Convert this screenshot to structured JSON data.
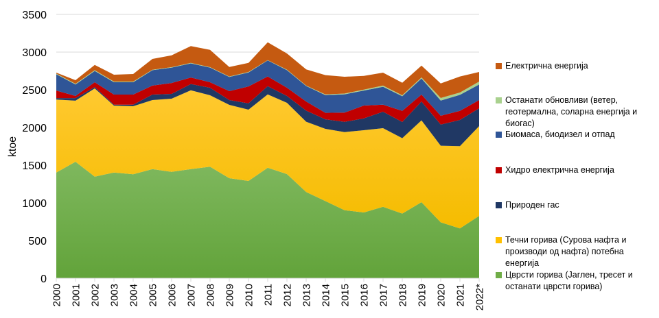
{
  "chart_data": {
    "type": "area",
    "stacked": true,
    "title": "",
    "xlabel": "",
    "ylabel": "ktoe",
    "ylim": [
      0,
      3500
    ],
    "yticks": [
      0,
      500,
      1000,
      1500,
      2000,
      2500,
      3000,
      3500
    ],
    "grid": true,
    "legend_position": "right",
    "categories": [
      "2000",
      "2001",
      "2002",
      "2003",
      "2004",
      "2005",
      "2006",
      "2007",
      "2008",
      "2009",
      "2010",
      "2011",
      "2012",
      "2013",
      "2014",
      "2015",
      "2016",
      "2017",
      "2018",
      "2019",
      "2020",
      "2021",
      "2022*"
    ],
    "series": [
      {
        "name": "Цврсти горива (Јаглен, тресет и останати цврсти горива)",
        "color": "#70AD47",
        "values": [
          1403,
          1545,
          1348,
          1403,
          1379,
          1448,
          1412,
          1448,
          1479,
          1327,
          1291,
          1465,
          1382,
          1145,
          1024,
          903,
          873,
          948,
          858,
          1009,
          742,
          661,
          827
        ]
      },
      {
        "name": "Течни горива (Сурова нафта и производи од нафта) потебна енергија",
        "color": "#FFC000",
        "values": [
          967,
          810,
          1170,
          887,
          903,
          916,
          970,
          1046,
          948,
          973,
          945,
          974,
          945,
          931,
          958,
          1036,
          1091,
          1043,
          1000,
          1086,
          1016,
          1091,
          1191
        ]
      },
      {
        "name": "Природен гас",
        "color": "#203864",
        "values": [
          20,
          35,
          18,
          13,
          21,
          72,
          63,
          82,
          100,
          64,
          85,
          109,
          91,
          148,
          126,
          136,
          157,
          218,
          215,
          250,
          281,
          348,
          237
        ]
      },
      {
        "name": "Хидро електрична енергија",
        "color": "#C00000",
        "values": [
          100,
          28,
          64,
          133,
          133,
          119,
          145,
          87,
          73,
          118,
          224,
          128,
          109,
          121,
          87,
          122,
          170,
          94,
          148,
          91,
          116,
          121,
          109
        ]
      },
      {
        "name": "Биомаса, биодизел и отпад",
        "color": "#2F5597",
        "values": [
          215,
          152,
          150,
          164,
          164,
          205,
          205,
          187,
          195,
          188,
          185,
          214,
          233,
          205,
          235,
          243,
          199,
          237,
          194,
          214,
          202,
          212,
          206
        ]
      },
      {
        "name": "Останати обновливи (ветер, геотермална, соларна енергија и биогас)",
        "color": "#A9D18E",
        "values": [
          10,
          10,
          10,
          9,
          9,
          6,
          5,
          7,
          5,
          6,
          6,
          4,
          7,
          5,
          9,
          10,
          13,
          15,
          12,
          14,
          34,
          31,
          39
        ]
      },
      {
        "name": "Електрична енергија",
        "color": "#C55A11",
        "values": [
          12,
          47,
          70,
          91,
          100,
          143,
          157,
          222,
          230,
          127,
          121,
          236,
          215,
          215,
          256,
          223,
          182,
          172,
          167,
          157,
          194,
          212,
          127
        ]
      }
    ]
  },
  "legend": {
    "items": [
      {
        "label": "Електрична енергија",
        "color": "#C55A11"
      },
      {
        "label": "Останати обновливи (ветер, геотермална, соларна енергија и биогас)",
        "color": "#A9D18E"
      },
      {
        "label": "Биомаса, биодизел и отпад",
        "color": "#2F5597"
      },
      {
        "label": "Хидро електрична енергија",
        "color": "#C00000"
      },
      {
        "label": "Природен гас",
        "color": "#203864"
      },
      {
        "label": "Течни горива (Сурова нафта и производи од нафта) потебна енергија",
        "color": "#FFC000"
      },
      {
        "label": "Цврсти горива (Јаглен, тресет и останати цврсти горива)",
        "color": "#70AD47"
      }
    ]
  }
}
